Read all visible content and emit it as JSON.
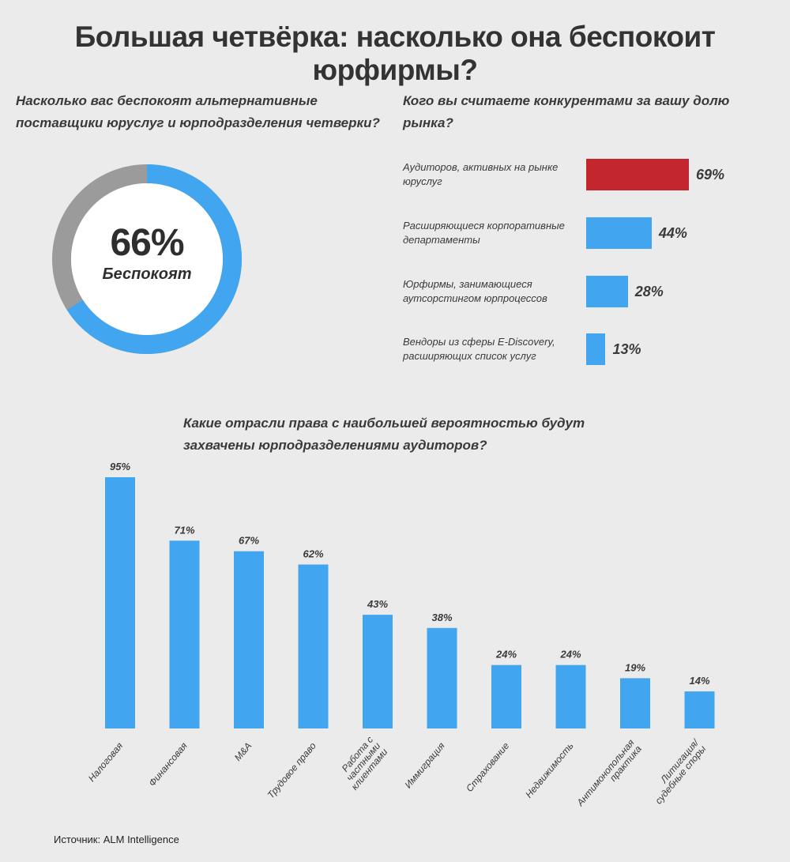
{
  "title": "Большая четвёрка: насколько она беспокоит юрфирмы?",
  "donut": {
    "question": "Насколько вас беспокоят альтернативные поставщики юруслуг и юрподразделения четверки?",
    "value_text": "66%",
    "value": 66,
    "label": "Беспокоят",
    "colors": {
      "filled": "#42a5f0",
      "rest": "#9b9b9b",
      "center": "#ffffff"
    }
  },
  "competitors": {
    "question": "Кого вы считаете конкурентами за вашу долю рынка?",
    "items": [
      {
        "label": "Аудиторов, активных на рынке юруслуг",
        "value": 69,
        "value_text": "69%",
        "color": "#c4262e"
      },
      {
        "label": "Расширяющиеся корпоративные департаменты",
        "value": 44,
        "value_text": "44%",
        "color": "#42a5f0"
      },
      {
        "label": "Юрфирмы, занимающиеся аутсорстингом юрпроцессов",
        "value": 28,
        "value_text": "28%",
        "color": "#42a5f0"
      },
      {
        "label": "Вендоры из сферы E-Discovery, расширяющих список услуг",
        "value": 13,
        "value_text": "13%",
        "color": "#42a5f0"
      }
    ]
  },
  "chart_data": [
    {
      "type": "pie",
      "categories": [
        "Беспокоят",
        ""
      ],
      "values": [
        66,
        34
      ]
    },
    {
      "type": "bar",
      "orientation": "horizontal",
      "title": "Кого вы считаете конкурентами за вашу долю рынка?",
      "categories": [
        "Аудиторов, активных на рынке юруслуг",
        "Расширяющиеся корпоративные департаменты",
        "Юрфирмы, занимающиеся аутсорстингом юрпроцессов",
        "Вендоры из сферы E-Discovery, расширяющих список услуг"
      ],
      "values": [
        69,
        44,
        28,
        13
      ]
    },
    {
      "type": "bar",
      "title": "Какие отрасли права с наибольшей вероятностью будут захвачены юрподразделениями аудиторов?",
      "categories": [
        "Налоговая",
        "Финансовая",
        "M&A",
        "Трудовое право",
        "Работа с частными клиентами",
        "Иммиграция",
        "Страхование",
        "Недвижимость",
        "Антимонопольная практика",
        "Литигация/ судебные споры"
      ],
      "values": [
        95,
        71,
        67,
        62,
        43,
        38,
        24,
        24,
        19,
        14
      ],
      "value_labels": [
        "95%",
        "71%",
        "67%",
        "62%",
        "43%",
        "38%",
        "24%",
        "24%",
        "19%",
        "14%"
      ],
      "label_lines": [
        [
          "Налоговая"
        ],
        [
          "Финансовая"
        ],
        [
          "M&A"
        ],
        [
          "Трудовое право"
        ],
        [
          "Работа с",
          "частными",
          "клиентами"
        ],
        [
          "Иммиграция"
        ],
        [
          "Страхование"
        ],
        [
          "Недвижимость"
        ],
        [
          "Антимонопольная",
          "практика"
        ],
        [
          "Литигация/",
          "судебные споры"
        ]
      ],
      "color": "#42a5f0"
    }
  ],
  "source": "Источник: ALM Intelligence"
}
